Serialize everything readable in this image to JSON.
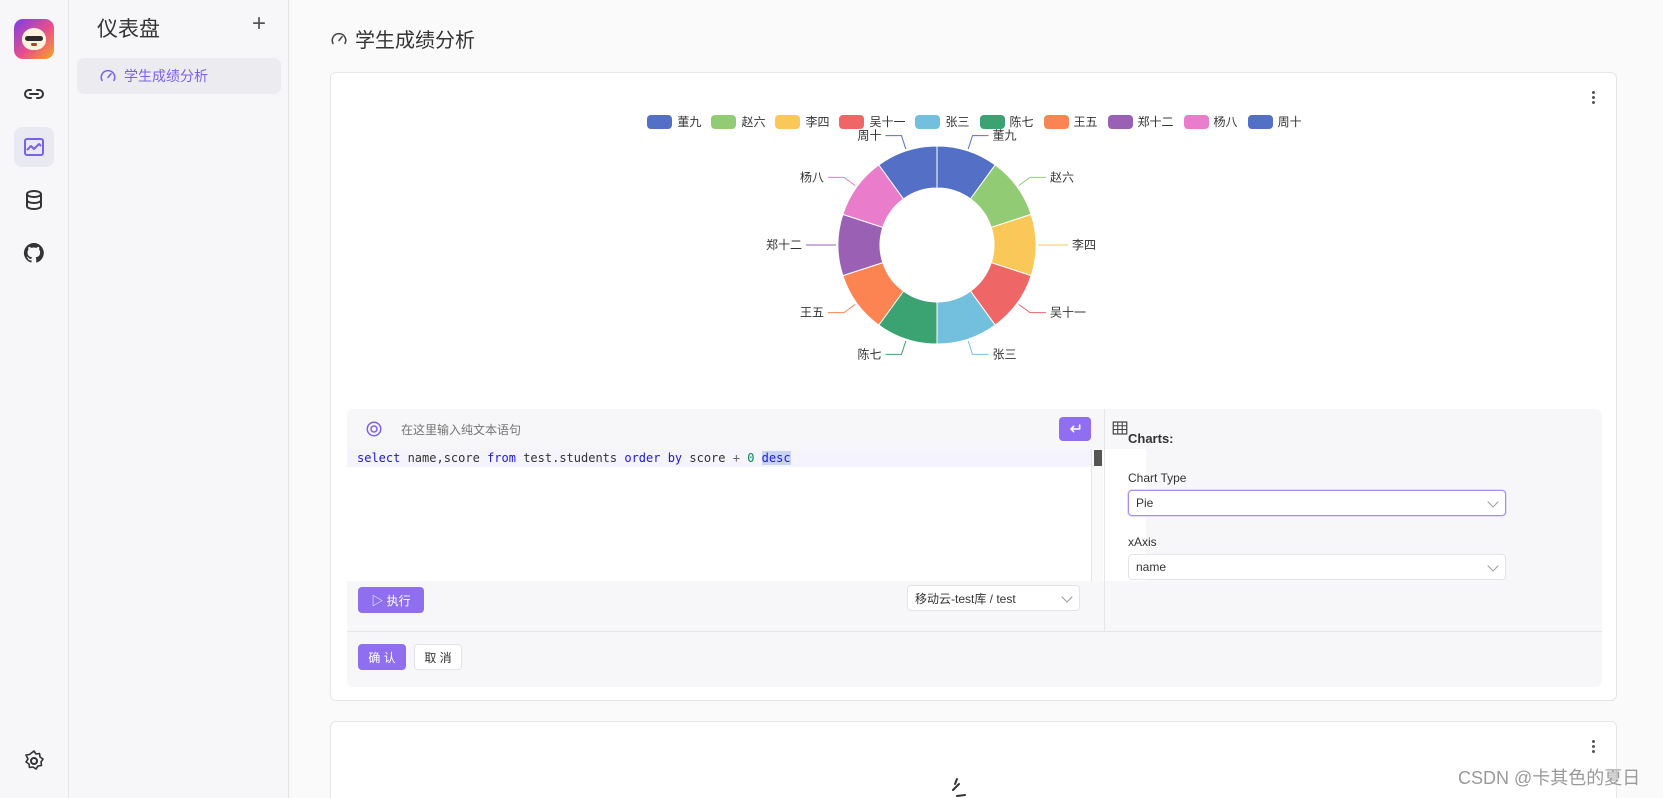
{
  "rail": {
    "icons": [
      "link-icon",
      "chart-icon",
      "database-icon",
      "github-icon",
      "settings-icon"
    ],
    "accent": "#7b61e8"
  },
  "sidenav": {
    "title": "仪表盘",
    "add_label": "+",
    "items": [
      {
        "label": "学生成绩分析",
        "active": true
      }
    ]
  },
  "page": {
    "title": "学生成绩分析"
  },
  "chart_data": {
    "type": "pie",
    "donut": true,
    "categories": [
      "董九",
      "赵六",
      "李四",
      "吴十一",
      "张三",
      "陈七",
      "王五",
      "郑十二",
      "杨八",
      "周十"
    ],
    "values": [
      1,
      1,
      1,
      1,
      1,
      1,
      1,
      1,
      1,
      1
    ],
    "colors": [
      "#5470c6",
      "#91cc75",
      "#fac858",
      "#ee6666",
      "#73c0de",
      "#3ba272",
      "#fc8452",
      "#9a60b4",
      "#ea7ccc",
      "#5470c6"
    ],
    "legend_position": "top"
  },
  "editor": {
    "nl_placeholder": "在这里输入纯文本语句",
    "sql_tokens": [
      {
        "t": "select",
        "c": "kw"
      },
      {
        "t": " name,score ",
        "c": ""
      },
      {
        "t": "from",
        "c": "kw"
      },
      {
        "t": " test.students ",
        "c": ""
      },
      {
        "t": "order",
        "c": "kw"
      },
      {
        "t": " ",
        "c": ""
      },
      {
        "t": "by",
        "c": "kw"
      },
      {
        "t": " score ",
        "c": ""
      },
      {
        "t": "+",
        "c": "op"
      },
      {
        "t": " ",
        "c": ""
      },
      {
        "t": "0",
        "c": "num"
      },
      {
        "t": " ",
        "c": ""
      },
      {
        "t": "desc",
        "c": "kw sel"
      }
    ],
    "execute_label": "▷ 执行",
    "datasource": "移动云-test库 / test"
  },
  "config": {
    "heading": "Charts:",
    "chart_type_label": "Chart Type",
    "chart_type_value": "Pie",
    "xaxis_label": "xAxis",
    "xaxis_value": "name"
  },
  "actions": {
    "confirm_label": "确 认",
    "cancel_label": "取 消"
  },
  "watermark": "CSDN @卡其色的夏日"
}
